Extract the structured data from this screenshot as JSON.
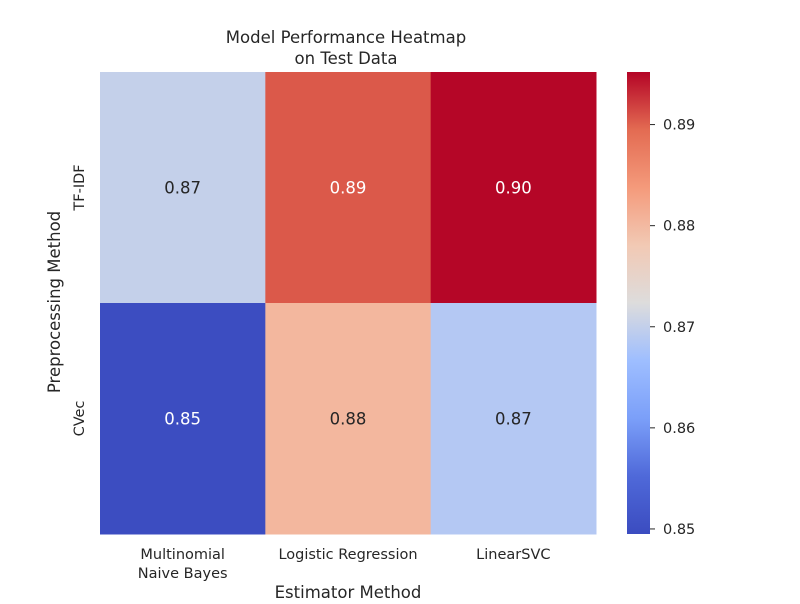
{
  "chart_data": {
    "type": "heatmap",
    "title_lines": [
      "Model Performance Heatmap",
      "on Test Data"
    ],
    "xlabel": "Estimator Method",
    "ylabel": "Preprocessing Method",
    "x_categories": [
      [
        "Multinomial",
        "Naive Bayes"
      ],
      [
        "Logistic Regression"
      ],
      [
        "LinearSVC"
      ]
    ],
    "y_categories": [
      "TF-IDF",
      "CVec"
    ],
    "values": [
      [
        0.8701,
        0.8905,
        0.8951
      ],
      [
        0.8497,
        0.8803,
        0.8686
      ]
    ],
    "annotations": [
      [
        "0.87",
        "0.89",
        "0.90"
      ],
      [
        "0.85",
        "0.88",
        "0.87"
      ]
    ],
    "colormap": "coolwarm",
    "colorbar": {
      "vmin": 0.8495,
      "vmax": 0.8952,
      "ticks": [
        0.85,
        0.86,
        0.87,
        0.88,
        0.89
      ],
      "tick_labels": [
        "0.85",
        "0.86",
        "0.87",
        "0.88",
        "0.89"
      ]
    },
    "grid": false
  }
}
